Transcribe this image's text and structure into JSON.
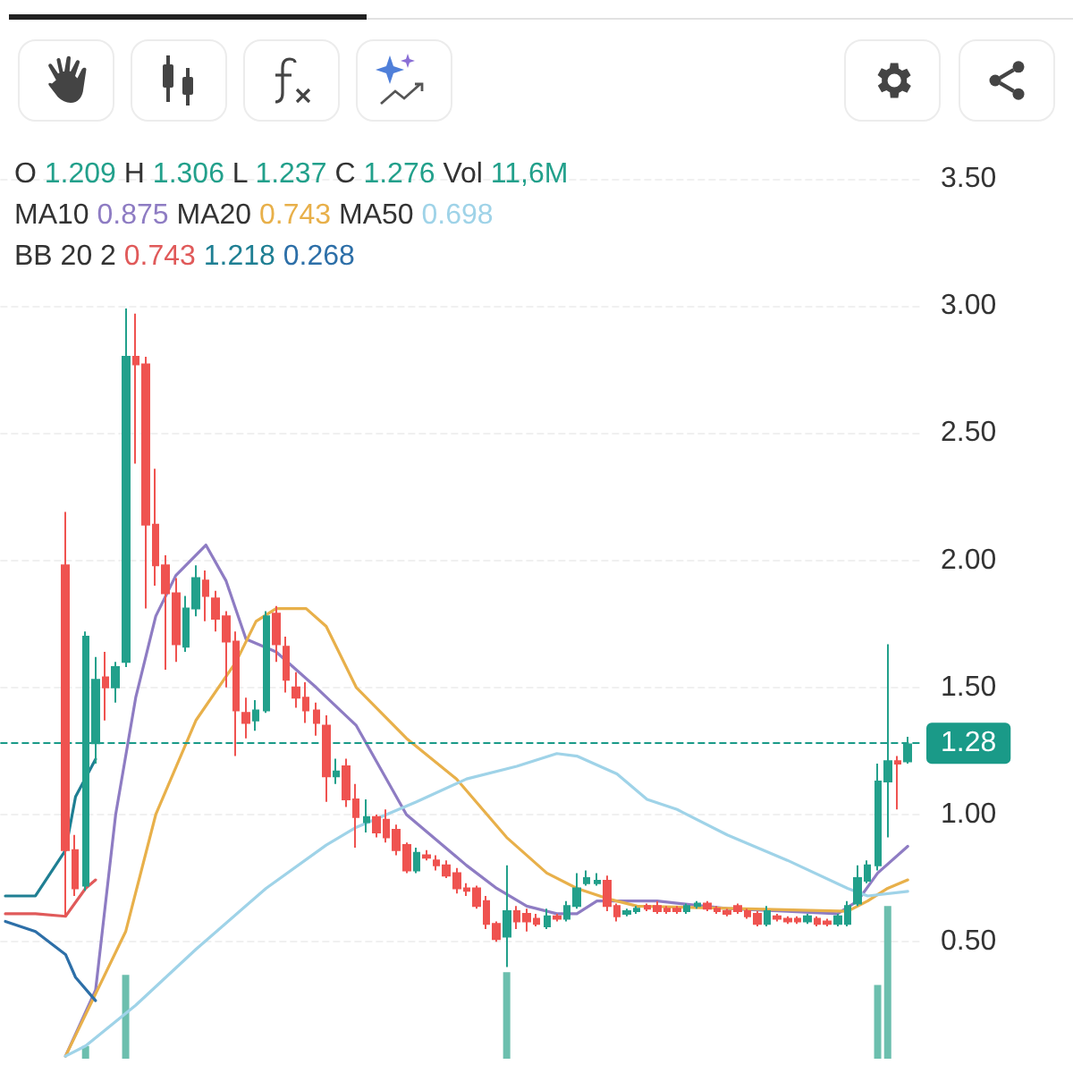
{
  "chart_data": {
    "type": "candlestick",
    "categories": [
      null,
      null,
      null,
      null,
      null,
      null,
      null,
      null,
      null,
      null,
      null,
      null,
      null,
      null,
      null,
      null,
      null,
      null,
      null,
      null,
      null,
      null,
      null,
      null,
      null,
      null,
      null,
      null,
      null,
      null,
      null,
      null,
      null,
      null,
      null,
      null,
      null,
      null,
      null,
      null,
      null,
      null,
      null,
      null,
      null,
      null,
      null,
      null,
      null,
      null,
      null,
      null,
      null,
      null,
      null,
      null,
      null,
      null,
      null,
      null,
      null,
      null,
      null,
      null,
      null,
      null,
      null,
      null,
      null,
      null,
      null,
      null,
      null,
      null,
      null,
      null,
      null,
      null,
      null,
      null,
      null,
      null,
      null,
      null,
      null,
      null,
      null,
      null,
      null,
      null,
      null,
      null
    ],
    "ylim": [
      0.04,
      3.5
    ],
    "yticks": [
      {
        "value": 0.5,
        "label": "0.50"
      },
      {
        "value": 1,
        "label": "1.00"
      },
      {
        "value": 1.5,
        "label": "1.50"
      },
      {
        "value": 2,
        "label": "2.00"
      },
      {
        "value": 2.5,
        "label": "2.50"
      },
      {
        "value": 3,
        "label": "3.00"
      },
      {
        "value": 3.5,
        "label": "3.50"
      }
    ],
    "grid": "y",
    "marker": "none",
    "annotations": [
      "O 1.209 H 1.306 L 1.237 C 1.276 Vol 11,6M",
      "MA10 0.875 MA20 0.743 MA50 0.698",
      "BB 20 2 0.743 1.218 0.268"
    ],
    "ref_lines": [
      {
        "axis": "y",
        "value": 1.276,
        "label": "1.28",
        "color": "#1a9a88",
        "line_style": "dashed"
      }
    ],
    "series": [
      {
        "ohlc": [
          null,
          null,
          null,
          null,
          null,
          null,
          [
            1.98,
            2.19,
            0.6,
            0.86
          ],
          [
            0.86,
            0.92,
            0.68,
            0.71
          ],
          [
            0.72,
            1.72,
            0.7,
            1.7
          ],
          [
            1.28,
            1.62,
            1.2,
            1.53
          ],
          [
            1.54,
            1.64,
            1.37,
            1.5
          ],
          [
            1.5,
            1.6,
            1.44,
            1.58
          ],
          [
            1.6,
            2.99,
            1.58,
            2.8
          ],
          [
            2.8,
            2.97,
            2.38,
            2.77
          ],
          [
            2.77,
            2.8,
            1.81,
            2.14
          ],
          [
            2.14,
            2.36,
            1.9,
            1.98
          ],
          [
            1.98,
            2.02,
            1.57,
            1.87
          ],
          [
            1.87,
            1.93,
            1.6,
            1.67
          ],
          [
            1.66,
            1.86,
            1.64,
            1.81
          ],
          [
            1.81,
            1.98,
            1.78,
            1.93
          ],
          [
            1.92,
            1.96,
            1.76,
            1.86
          ],
          [
            1.85,
            1.88,
            1.72,
            1.77
          ],
          [
            1.78,
            1.8,
            1.5,
            1.68
          ],
          [
            1.68,
            1.72,
            1.23,
            1.41
          ],
          [
            1.4,
            1.46,
            1.3,
            1.36
          ],
          [
            1.37,
            1.45,
            1.33,
            1.41
          ],
          [
            1.41,
            1.8,
            1.4,
            1.78
          ],
          [
            1.79,
            1.82,
            1.6,
            1.67
          ],
          [
            1.66,
            1.7,
            1.48,
            1.53
          ],
          [
            1.5,
            1.56,
            1.42,
            1.46
          ],
          [
            1.46,
            1.52,
            1.36,
            1.41
          ],
          [
            1.41,
            1.44,
            1.31,
            1.36
          ],
          [
            1.35,
            1.39,
            1.05,
            1.15
          ],
          [
            1.15,
            1.22,
            1.12,
            1.17
          ],
          [
            1.19,
            1.22,
            1.03,
            1.06
          ],
          [
            1.06,
            1.12,
            0.87,
            0.99
          ],
          [
            0.97,
            1.06,
            0.93,
            0.99
          ],
          [
            0.99,
            1.0,
            0.91,
            0.93
          ],
          [
            0.98,
            1.02,
            0.89,
            0.91
          ],
          [
            0.94,
            0.96,
            0.84,
            0.86
          ],
          [
            0.88,
            0.89,
            0.77,
            0.78
          ],
          [
            0.78,
            0.87,
            0.77,
            0.85
          ],
          [
            0.84,
            0.86,
            0.82,
            0.83
          ],
          [
            0.82,
            0.84,
            0.78,
            0.8
          ],
          [
            0.8,
            0.82,
            0.75,
            0.76
          ],
          [
            0.77,
            0.79,
            0.69,
            0.71
          ],
          [
            0.71,
            0.73,
            0.68,
            0.7
          ],
          [
            0.71,
            0.72,
            0.63,
            0.64
          ],
          [
            0.66,
            0.68,
            0.55,
            0.57
          ],
          [
            0.57,
            0.58,
            0.5,
            0.51
          ],
          [
            0.52,
            0.8,
            0.4,
            0.62
          ],
          [
            0.62,
            0.64,
            0.55,
            0.58
          ],
          [
            0.61,
            0.63,
            0.54,
            0.58
          ],
          [
            0.59,
            0.61,
            0.56,
            0.57
          ],
          [
            0.56,
            0.63,
            0.55,
            0.6
          ],
          [
            0.6,
            0.61,
            0.58,
            0.59
          ],
          [
            0.59,
            0.66,
            0.58,
            0.64
          ],
          [
            0.64,
            0.77,
            0.63,
            0.71
          ],
          [
            0.73,
            0.78,
            0.72,
            0.75
          ],
          [
            0.73,
            0.77,
            0.72,
            0.74
          ],
          [
            0.74,
            0.76,
            0.62,
            0.64
          ],
          [
            0.64,
            0.65,
            0.58,
            0.6
          ],
          [
            0.61,
            0.63,
            0.6,
            0.62
          ],
          [
            0.62,
            0.64,
            0.61,
            0.63
          ],
          [
            0.64,
            0.65,
            0.62,
            0.63
          ],
          [
            0.64,
            0.66,
            0.61,
            0.62
          ],
          [
            0.63,
            0.64,
            0.61,
            0.62
          ],
          [
            0.63,
            0.64,
            0.61,
            0.62
          ],
          [
            0.62,
            0.65,
            0.61,
            0.64
          ],
          [
            0.64,
            0.66,
            0.63,
            0.65
          ],
          [
            0.65,
            0.66,
            0.62,
            0.63
          ],
          [
            0.63,
            0.64,
            0.61,
            0.62
          ],
          [
            0.62,
            0.63,
            0.6,
            0.61
          ],
          [
            0.64,
            0.65,
            0.61,
            0.62
          ],
          [
            0.62,
            0.63,
            0.59,
            0.6
          ],
          [
            0.61,
            0.62,
            0.56,
            0.57
          ],
          [
            0.57,
            0.64,
            0.56,
            0.62
          ],
          [
            0.6,
            0.61,
            0.58,
            0.59
          ],
          [
            0.59,
            0.6,
            0.57,
            0.58
          ],
          [
            0.59,
            0.6,
            0.57,
            0.58
          ],
          [
            0.58,
            0.61,
            0.57,
            0.6
          ],
          [
            0.59,
            0.6,
            0.56,
            0.57
          ],
          [
            0.58,
            0.59,
            0.56,
            0.57
          ],
          [
            0.57,
            0.61,
            0.56,
            0.6
          ],
          [
            0.57,
            0.66,
            0.56,
            0.64
          ],
          [
            0.65,
            0.8,
            0.64,
            0.75
          ],
          [
            0.74,
            0.82,
            0.73,
            0.8
          ],
          [
            0.8,
            1.2,
            0.78,
            1.13
          ],
          [
            1.13,
            1.67,
            0.91,
            1.21
          ],
          [
            1.21,
            1.23,
            1.02,
            1.2
          ],
          [
            1.209,
            1.306,
            1.2,
            1.276
          ],
          null
        ],
        "colors": [
          null,
          null,
          null,
          null,
          null,
          null,
          "#ef5350",
          "#ef5350",
          "#22a08b",
          "#22a08b",
          "#ef5350",
          "#22a08b",
          "#22a08b",
          "#ef5350",
          "#ef5350",
          "#ef5350",
          "#ef5350",
          "#ef5350",
          "#22a08b",
          "#22a08b",
          "#ef5350",
          "#ef5350",
          "#ef5350",
          "#ef5350",
          "#ef5350",
          "#22a08b",
          "#22a08b",
          "#ef5350",
          "#ef5350",
          "#ef5350",
          "#ef5350",
          "#ef5350",
          "#ef5350",
          "#22a08b",
          "#ef5350",
          "#ef5350",
          "#22a08b",
          "#ef5350",
          "#ef5350",
          "#ef5350",
          "#ef5350",
          "#22a08b",
          "#ef5350",
          "#ef5350",
          "#ef5350",
          "#ef5350",
          "#ef5350",
          "#ef5350",
          "#ef5350",
          "#ef5350",
          "#22a08b",
          "#ef5350",
          "#ef5350",
          "#ef5350",
          "#22a08b",
          "#ef5350",
          "#22a08b",
          "#22a08b",
          "#22a08b",
          "#22a08b",
          "#ef5350",
          "#ef5350",
          "#22a08b",
          "#22a08b",
          "#ef5350",
          "#ef5350",
          "#ef5350",
          "#ef5350",
          "#22a08b",
          "#22a08b",
          "#ef5350",
          "#ef5350",
          "#ef5350",
          "#ef5350",
          "#ef5350",
          "#ef5350",
          "#22a08b",
          "#ef5350",
          "#ef5350",
          "#ef5350",
          "#22a08b",
          "#ef5350",
          "#ef5350",
          "#22a08b",
          "#22a08b",
          "#22a08b",
          "#22a08b",
          "#22a08b",
          "#22a08b",
          "#ef5350",
          "#22a08b",
          null
        ]
      },
      {
        "type": "bar",
        "color": "#6cbfae",
        "values": [
          null,
          null,
          null,
          null,
          null,
          null,
          null,
          null,
          0.09,
          null,
          null,
          null,
          0.37,
          null,
          null,
          null,
          null,
          null,
          null,
          null,
          null,
          null,
          null,
          null,
          null,
          null,
          null,
          null,
          null,
          null,
          null,
          null,
          null,
          null,
          null,
          null,
          null,
          null,
          null,
          null,
          null,
          null,
          null,
          null,
          null,
          null,
          null,
          null,
          null,
          null,
          0.38,
          null,
          null,
          null,
          null,
          null,
          null,
          null,
          null,
          null,
          null,
          null,
          null,
          null,
          null,
          null,
          null,
          null,
          null,
          null,
          null,
          null,
          null,
          null,
          null,
          null,
          null,
          null,
          null,
          null,
          null,
          null,
          null,
          null,
          null,
          null,
          null,
          0.33,
          0.64,
          null,
          null,
          null
        ]
      },
      {
        "type": "line",
        "color": "#8e7cc3",
        "values": [
          null,
          null,
          null,
          null,
          null,
          null,
          0.05,
          null,
          null,
          0.31,
          null,
          1.0,
          null,
          1.46,
          null,
          1.78,
          null,
          1.94,
          null,
          null,
          2.06,
          null,
          1.92,
          null,
          1.69,
          null,
          null,
          1.64,
          null,
          null,
          null,
          1.5,
          null,
          null,
          null,
          1.35,
          null,
          null,
          null,
          null,
          1.0,
          null,
          null,
          null,
          null,
          null,
          0.8,
          null,
          null,
          0.71,
          null,
          null,
          0.64,
          null,
          null,
          0.61,
          null,
          0.61,
          null,
          0.66,
          null,
          0.66,
          null,
          null,
          null,
          0.66,
          null,
          null,
          null,
          null,
          null,
          null,
          0.63,
          null,
          null,
          null,
          null,
          null,
          0.62,
          null,
          null,
          null,
          null,
          0.61,
          null,
          0.66,
          null,
          0.77,
          null,
          null,
          0.875,
          null
        ]
      },
      {
        "type": "line",
        "color": "#e8b04a",
        "values": [
          null,
          null,
          null,
          null,
          null,
          null,
          0.05,
          null,
          null,
          null,
          null,
          null,
          0.54,
          null,
          null,
          1.0,
          null,
          null,
          null,
          1.37,
          null,
          null,
          null,
          1.6,
          null,
          1.76,
          null,
          1.81,
          null,
          null,
          1.81,
          null,
          1.74,
          null,
          null,
          1.5,
          null,
          null,
          null,
          null,
          1.3,
          null,
          null,
          null,
          null,
          1.14,
          null,
          null,
          null,
          null,
          0.91,
          null,
          null,
          null,
          0.77,
          null,
          null,
          0.71,
          null,
          null,
          0.67,
          null,
          null,
          0.64,
          null,
          null,
          null,
          null,
          null,
          null,
          null,
          null,
          null,
          0.63,
          null,
          null,
          null,
          null,
          null,
          null,
          null,
          null,
          null,
          null,
          0.62,
          null,
          0.66,
          null,
          0.71,
          null,
          0.743,
          null
        ]
      },
      {
        "type": "line",
        "color": "#9fd3e8",
        "values": [
          null,
          null,
          null,
          null,
          null,
          null,
          0.05,
          null,
          0.09,
          null,
          null,
          null,
          null,
          0.25,
          null,
          null,
          null,
          null,
          null,
          0.47,
          null,
          null,
          null,
          null,
          null,
          null,
          0.71,
          null,
          null,
          null,
          null,
          null,
          0.88,
          null,
          null,
          0.95,
          null,
          null,
          null,
          null,
          null,
          1.05,
          null,
          null,
          null,
          null,
          1.14,
          null,
          null,
          null,
          null,
          1.19,
          null,
          null,
          null,
          1.24,
          null,
          1.23,
          null,
          null,
          null,
          1.16,
          null,
          null,
          1.06,
          null,
          null,
          1.02,
          null,
          null,
          null,
          null,
          0.92,
          null,
          null,
          null,
          null,
          null,
          0.82,
          null,
          null,
          null,
          null,
          null,
          0.71,
          null,
          0.68,
          null,
          null,
          null,
          0.698,
          null
        ]
      },
      {
        "type": "line",
        "color": "#e05a5a",
        "values": [
          0.61,
          null,
          null,
          0.61,
          null,
          null,
          0.6,
          null,
          0.71,
          0.743,
          null,
          null,
          null,
          null,
          null,
          null,
          null,
          null,
          null,
          null,
          null,
          null,
          null,
          null,
          null,
          null,
          null,
          null,
          null,
          null,
          null,
          null,
          null,
          null,
          null,
          null,
          null,
          null,
          null,
          null,
          null,
          null,
          null,
          null,
          null,
          null,
          null,
          null,
          null,
          null,
          null,
          null,
          null,
          null,
          null,
          null,
          null,
          null,
          null,
          null,
          null,
          null,
          null,
          null,
          null,
          null,
          null,
          null,
          null,
          null,
          null,
          null,
          null,
          null,
          null,
          null,
          null,
          null,
          null,
          null,
          null,
          null,
          null,
          null,
          null,
          null,
          null,
          null,
          null,
          null,
          null,
          null
        ]
      },
      {
        "type": "line",
        "color": "#1f7f93",
        "values": [
          0.68,
          null,
          null,
          0.68,
          null,
          null,
          0.86,
          1.07,
          null,
          1.218,
          null,
          null,
          null,
          null,
          null,
          null,
          null,
          null,
          null,
          null,
          null,
          null,
          null,
          null,
          null,
          null,
          null,
          null,
          null,
          null,
          null,
          null,
          null,
          null,
          null,
          null,
          null,
          null,
          null,
          null,
          null,
          null,
          null,
          null,
          null,
          null,
          null,
          null,
          null,
          null,
          null,
          null,
          null,
          null,
          null,
          null,
          null,
          null,
          null,
          null,
          null,
          null,
          null,
          null,
          null,
          null,
          null,
          null,
          null,
          null,
          null,
          null,
          null,
          null,
          null,
          null,
          null,
          null,
          null,
          null,
          null,
          null,
          null,
          null,
          null,
          null,
          null,
          null,
          null,
          null,
          null,
          null
        ]
      },
      {
        "type": "line",
        "color": "#2d6fa8",
        "values": [
          0.58,
          null,
          null,
          0.54,
          null,
          null,
          0.45,
          0.36,
          null,
          0.268,
          null,
          null,
          null,
          null,
          null,
          null,
          null,
          null,
          null,
          null,
          null,
          null,
          null,
          null,
          null,
          null,
          null,
          null,
          null,
          null,
          null,
          null,
          null,
          null,
          null,
          null,
          null,
          null,
          null,
          null,
          null,
          null,
          null,
          null,
          null,
          null,
          null,
          null,
          null,
          null,
          null,
          null,
          null,
          null,
          null,
          null,
          null,
          null,
          null,
          null,
          null,
          null,
          null,
          null,
          null,
          null,
          null,
          null,
          null,
          null,
          null,
          null,
          null,
          null,
          null,
          null,
          null,
          null,
          null,
          null,
          null,
          null,
          null,
          null,
          null,
          null,
          null,
          null,
          null,
          null,
          null,
          null
        ]
      }
    ]
  }
}
